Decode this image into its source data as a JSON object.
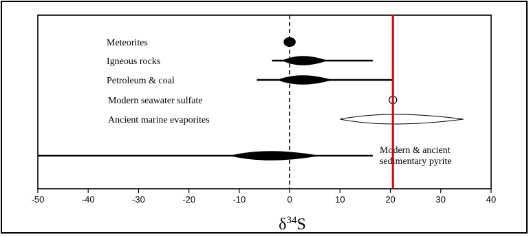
{
  "chart_data": {
    "type": "range",
    "xlabel": "δ34S",
    "xlabel_parts": {
      "symbol": "δ",
      "superscript": "34",
      "letter": "S"
    },
    "xlim": [
      -50,
      40
    ],
    "xticks": [
      "-50",
      "-40",
      "-30",
      "-20",
      "-10",
      "0",
      "10",
      "20",
      "30",
      "40"
    ],
    "reference_lines": [
      {
        "x": 0,
        "style": "dashed",
        "color": "#000000"
      },
      {
        "x": 20.5,
        "style": "solid",
        "color": "#dd0000"
      }
    ],
    "series": [
      {
        "name": "Meteorites",
        "min": -0.5,
        "max": 0.5,
        "peak": 0,
        "peak_width": 1.2,
        "fill": "solid"
      },
      {
        "name": "Igneous rocks",
        "min": -3.5,
        "max": 16.5,
        "peak": 3,
        "peak_width": 4.5,
        "fill": "solid"
      },
      {
        "name": "Petroleum & coal",
        "min": -6.5,
        "max": 20.5,
        "peak": 3,
        "peak_width": 5.5,
        "fill": "solid"
      },
      {
        "name": "Modern seawater sulfate",
        "min": 20.5,
        "max": 20.5,
        "peak": 20.5,
        "peak_width": 0.9,
        "fill": "open"
      },
      {
        "name": "Ancient marine evaporites",
        "min": 10,
        "max": 34.5,
        "peak": 20,
        "peak_width": 6,
        "fill": "open"
      },
      {
        "name_lines": [
          "Modern & ancient",
          "sedimentary pyrite"
        ],
        "min": -50,
        "max": 16.5,
        "peak": -3,
        "peak_width": 9,
        "fill": "solid"
      }
    ]
  }
}
